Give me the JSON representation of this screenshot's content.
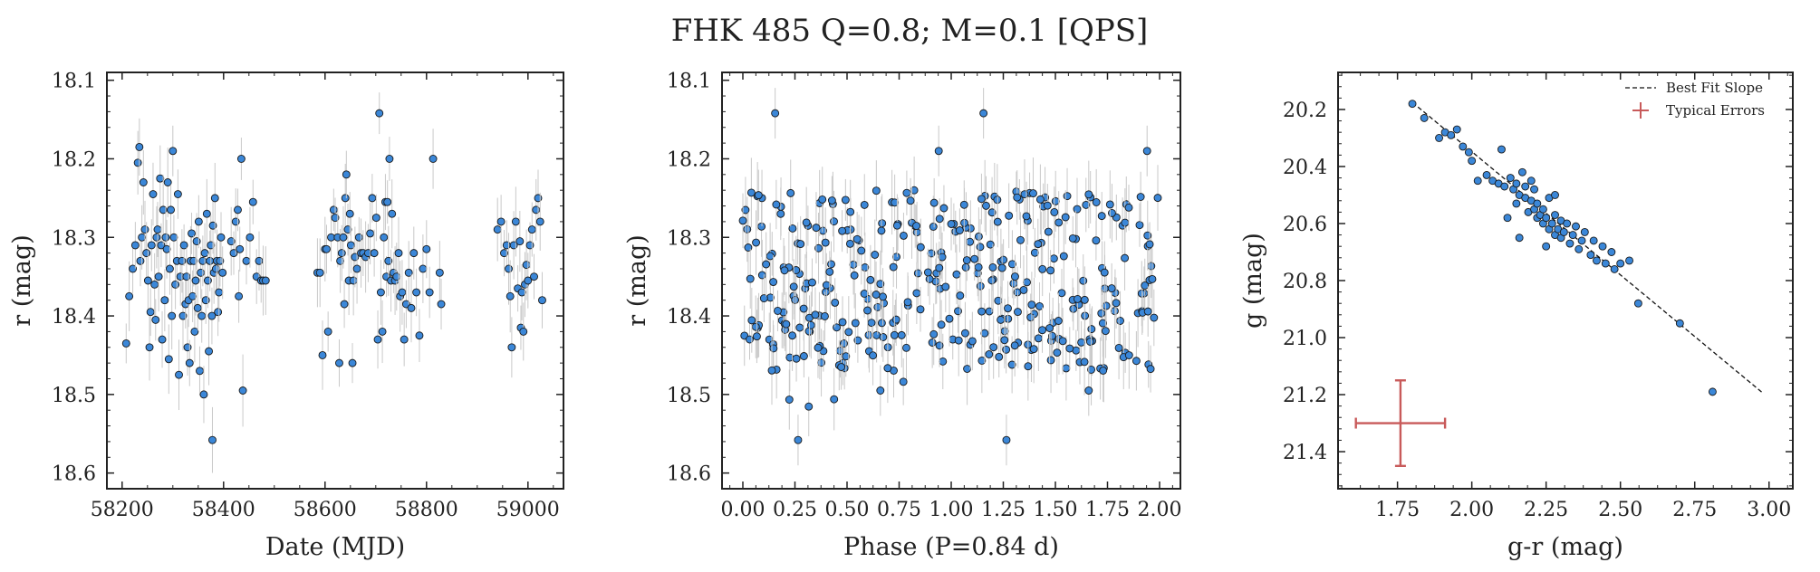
{
  "figure": {
    "title": "FHK 485  Q=0.8; M=0.1 [QPS]"
  },
  "chart_data": [
    {
      "type": "scatter",
      "xlabel": "Date (MJD)",
      "ylabel": "r (mag)",
      "xlim": [
        58170,
        59070
      ],
      "ylim": [
        18.09,
        18.62
      ],
      "y_inverted": true,
      "xticks": [
        58200,
        58400,
        58600,
        58800,
        59000
      ],
      "yticks": [
        18.1,
        18.2,
        18.3,
        18.4,
        18.5,
        18.6
      ],
      "error_bar_color": "#c8c8c8",
      "marker_color": "#3b87d8",
      "points": [
        [
          58208,
          18.435
        ],
        [
          58214,
          18.375
        ],
        [
          58221,
          18.34
        ],
        [
          58226,
          18.31
        ],
        [
          58231,
          18.205
        ],
        [
          58234,
          18.185
        ],
        [
          58236,
          18.33
        ],
        [
          58239,
          18.3
        ],
        [
          58242,
          18.23
        ],
        [
          58245,
          18.29
        ],
        [
          58248,
          18.32
        ],
        [
          58251,
          18.355
        ],
        [
          58254,
          18.44
        ],
        [
          58256,
          18.395
        ],
        [
          58258,
          18.31
        ],
        [
          58261,
          18.245
        ],
        [
          58264,
          18.36
        ],
        [
          58266,
          18.405
        ],
        [
          58268,
          18.3
        ],
        [
          58270,
          18.29
        ],
        [
          58272,
          18.35
        ],
        [
          58275,
          18.225
        ],
        [
          58277,
          18.31
        ],
        [
          58279,
          18.43
        ],
        [
          58281,
          18.265
        ],
        [
          58284,
          18.38
        ],
        [
          58286,
          18.3
        ],
        [
          58288,
          18.315
        ],
        [
          58290,
          18.23
        ],
        [
          58292,
          18.455
        ],
        [
          58294,
          18.34
        ],
        [
          58296,
          18.265
        ],
        [
          58298,
          18.4
        ],
        [
          58300,
          18.19
        ],
        [
          58302,
          18.3
        ],
        [
          58305,
          18.36
        ],
        [
          58308,
          18.33
        ],
        [
          58310,
          18.245
        ],
        [
          58312,
          18.475
        ],
        [
          58315,
          18.35
        ],
        [
          58318,
          18.33
        ],
        [
          58320,
          18.4
        ],
        [
          58322,
          18.31
        ],
        [
          58325,
          18.385
        ],
        [
          58327,
          18.35
        ],
        [
          58329,
          18.44
        ],
        [
          58331,
          18.38
        ],
        [
          58333,
          18.46
        ],
        [
          58335,
          18.33
        ],
        [
          58337,
          18.295
        ],
        [
          58339,
          18.375
        ],
        [
          58341,
          18.33
        ],
        [
          58343,
          18.42
        ],
        [
          58345,
          18.355
        ],
        [
          58347,
          18.305
        ],
        [
          58349,
          18.39
        ],
        [
          58351,
          18.28
        ],
        [
          58353,
          18.47
        ],
        [
          58355,
          18.345
        ],
        [
          58357,
          18.4
        ],
        [
          58359,
          18.33
        ],
        [
          58361,
          18.5
        ],
        [
          58363,
          18.32
        ],
        [
          58365,
          18.38
        ],
        [
          58367,
          18.27
        ],
        [
          58369,
          18.355
        ],
        [
          58371,
          18.445
        ],
        [
          58373,
          18.33
        ],
        [
          58375,
          18.31
        ],
        [
          58377,
          18.4
        ],
        [
          58379,
          18.285
        ],
        [
          58381,
          18.345
        ],
        [
          58383,
          18.25
        ],
        [
          58385,
          18.34
        ],
        [
          58387,
          18.33
        ],
        [
          58389,
          18.395
        ],
        [
          58391,
          18.37
        ],
        [
          58393,
          18.33
        ],
        [
          58395,
          18.3
        ],
        [
          58398,
          18.345
        ],
        [
          58378,
          18.558
        ],
        [
          58415,
          18.305
        ],
        [
          58420,
          18.32
        ],
        [
          58424,
          18.28
        ],
        [
          58428,
          18.265
        ],
        [
          58430,
          18.375
        ],
        [
          58432,
          18.315
        ],
        [
          58435,
          18.2
        ],
        [
          58438,
          18.495
        ],
        [
          58445,
          18.33
        ],
        [
          58452,
          18.3
        ],
        [
          58458,
          18.255
        ],
        [
          58465,
          18.35
        ],
        [
          58470,
          18.33
        ],
        [
          58474,
          18.355
        ],
        [
          58478,
          18.355
        ],
        [
          58483,
          18.355
        ],
        [
          58585,
          18.345
        ],
        [
          58590,
          18.345
        ],
        [
          58595,
          18.45
        ],
        [
          58600,
          18.315
        ],
        [
          58603,
          18.315
        ],
        [
          58606,
          18.42
        ],
        [
          58612,
          18.3
        ],
        [
          58617,
          18.265
        ],
        [
          58620,
          18.275
        ],
        [
          58625,
          18.3
        ],
        [
          58628,
          18.46
        ],
        [
          58630,
          18.33
        ],
        [
          58633,
          18.32
        ],
        [
          58636,
          18.3
        ],
        [
          58638,
          18.385
        ],
        [
          58640,
          18.25
        ],
        [
          58642,
          18.22
        ],
        [
          58645,
          18.29
        ],
        [
          58647,
          18.355
        ],
        [
          58649,
          18.27
        ],
        [
          58651,
          18.31
        ],
        [
          58654,
          18.46
        ],
        [
          58656,
          18.355
        ],
        [
          58659,
          18.325
        ],
        [
          58663,
          18.34
        ],
        [
          58667,
          18.3
        ],
        [
          58671,
          18.32
        ],
        [
          58675,
          18.32
        ],
        [
          58680,
          18.325
        ],
        [
          58685,
          18.32
        ],
        [
          58689,
          18.295
        ],
        [
          58693,
          18.25
        ],
        [
          58697,
          18.32
        ],
        [
          58701,
          18.275
        ],
        [
          58704,
          18.43
        ],
        [
          58707,
          18.142
        ],
        [
          58710,
          18.37
        ],
        [
          58713,
          18.42
        ],
        [
          58716,
          18.3
        ],
        [
          58719,
          18.255
        ],
        [
          58721,
          18.35
        ],
        [
          58723,
          18.255
        ],
        [
          58725,
          18.33
        ],
        [
          58727,
          18.2
        ],
        [
          58730,
          18.355
        ],
        [
          58732,
          18.27
        ],
        [
          58735,
          18.345
        ],
        [
          58738,
          18.355
        ],
        [
          58741,
          18.35
        ],
        [
          58745,
          18.32
        ],
        [
          58748,
          18.375
        ],
        [
          58752,
          18.37
        ],
        [
          58756,
          18.43
        ],
        [
          58760,
          18.385
        ],
        [
          58765,
          18.345
        ],
        [
          58770,
          18.39
        ],
        [
          58775,
          18.32
        ],
        [
          58780,
          18.37
        ],
        [
          58786,
          18.425
        ],
        [
          58793,
          18.34
        ],
        [
          58800,
          18.315
        ],
        [
          58806,
          18.37
        ],
        [
          58813,
          18.2
        ],
        [
          58826,
          18.345
        ],
        [
          58829,
          18.385
        ],
        [
          58940,
          18.29
        ],
        [
          58947,
          18.28
        ],
        [
          58953,
          18.32
        ],
        [
          58958,
          18.31
        ],
        [
          58962,
          18.34
        ],
        [
          58965,
          18.375
        ],
        [
          58968,
          18.44
        ],
        [
          58972,
          18.31
        ],
        [
          58976,
          18.28
        ],
        [
          58980,
          18.365
        ],
        [
          58984,
          18.305
        ],
        [
          58986,
          18.415
        ],
        [
          58988,
          18.37
        ],
        [
          58991,
          18.42
        ],
        [
          58994,
          18.36
        ],
        [
          58997,
          18.335
        ],
        [
          59000,
          18.355
        ],
        [
          59004,
          18.31
        ],
        [
          59008,
          18.29
        ],
        [
          59012,
          18.35
        ],
        [
          59016,
          18.265
        ],
        [
          59020,
          18.25
        ],
        [
          59024,
          18.28
        ],
        [
          59028,
          18.38
        ]
      ]
    },
    {
      "type": "scatter",
      "xlabel": "Phase (P=0.84 d)",
      "ylabel": "r (mag)",
      "xlim": [
        -0.1,
        2.1
      ],
      "ylim": [
        18.09,
        18.62
      ],
      "y_inverted": true,
      "xticks": [
        0.0,
        0.25,
        0.5,
        0.75,
        1.0,
        1.25,
        1.5,
        1.75,
        2.0
      ],
      "xtick_labels": [
        "0.00",
        "0.25",
        "0.50",
        "0.75",
        "1.00",
        "1.25",
        "1.50",
        "1.75",
        "2.00"
      ],
      "yticks": [
        18.1,
        18.2,
        18.3,
        18.4,
        18.5,
        18.6
      ],
      "error_bar_color": "#c8c8c8",
      "marker_color": "#3b87d8",
      "outliers": [
        [
          0.155,
          18.142
        ],
        [
          1.155,
          18.142
        ],
        [
          0.265,
          18.558
        ],
        [
          1.265,
          18.558
        ],
        [
          0.94,
          18.19
        ],
        [
          1.94,
          18.19
        ],
        [
          0.66,
          18.495
        ],
        [
          1.66,
          18.495
        ]
      ]
    },
    {
      "type": "scatter",
      "xlabel": "g-r (mag)",
      "ylabel": "g (mag)",
      "xlim": [
        1.55,
        3.08
      ],
      "ylim": [
        20.07,
        21.53
      ],
      "y_inverted": true,
      "xticks": [
        1.75,
        2.0,
        2.25,
        2.5,
        2.75,
        3.0
      ],
      "xtick_labels": [
        "1.75",
        "2.00",
        "2.25",
        "2.50",
        "2.75",
        "3.00"
      ],
      "yticks": [
        20.2,
        20.4,
        20.6,
        20.8,
        21.0,
        21.2,
        21.4
      ],
      "yticks_labels": [
        "20.2",
        "20.4",
        "20.6",
        "20.8",
        "21.0",
        "21.2",
        "21.4"
      ],
      "marker_color": "#3b87d8",
      "best_fit": {
        "x": [
          1.8,
          2.98
        ],
        "y": [
          20.175,
          21.195
        ]
      },
      "typical_error": {
        "x": 1.76,
        "y": 21.3,
        "dx": 0.15,
        "dy": 0.15,
        "color": "#c85a5a"
      },
      "legend": [
        "Best Fit Slope",
        "Typical Errors"
      ],
      "legend_position": "top-right",
      "points": [
        [
          1.8,
          20.18
        ],
        [
          1.84,
          20.23
        ],
        [
          1.89,
          20.3
        ],
        [
          1.91,
          20.28
        ],
        [
          1.93,
          20.29
        ],
        [
          1.95,
          20.27
        ],
        [
          1.97,
          20.33
        ],
        [
          1.99,
          20.35
        ],
        [
          2.0,
          20.38
        ],
        [
          2.02,
          20.45
        ],
        [
          2.05,
          20.43
        ],
        [
          2.07,
          20.45
        ],
        [
          2.09,
          20.46
        ],
        [
          2.1,
          20.34
        ],
        [
          2.11,
          20.47
        ],
        [
          2.13,
          20.44
        ],
        [
          2.14,
          20.48
        ],
        [
          2.15,
          20.46
        ],
        [
          2.15,
          20.53
        ],
        [
          2.16,
          20.5
        ],
        [
          2.17,
          20.42
        ],
        [
          2.18,
          20.51
        ],
        [
          2.18,
          20.47
        ],
        [
          2.19,
          20.56
        ],
        [
          2.2,
          20.45
        ],
        [
          2.2,
          20.52
        ],
        [
          2.21,
          20.55
        ],
        [
          2.21,
          20.48
        ],
        [
          2.22,
          20.58
        ],
        [
          2.22,
          20.53
        ],
        [
          2.23,
          20.57
        ],
        [
          2.24,
          20.6
        ],
        [
          2.24,
          20.55
        ],
        [
          2.25,
          20.58
        ],
        [
          2.26,
          20.51
        ],
        [
          2.26,
          20.62
        ],
        [
          2.27,
          20.6
        ],
        [
          2.28,
          20.57
        ],
        [
          2.28,
          20.64
        ],
        [
          2.29,
          20.62
        ],
        [
          2.3,
          20.59
        ],
        [
          2.3,
          20.65
        ],
        [
          2.31,
          20.63
        ],
        [
          2.32,
          20.6
        ],
        [
          2.33,
          20.67
        ],
        [
          2.34,
          20.64
        ],
        [
          2.35,
          20.61
        ],
        [
          2.36,
          20.69
        ],
        [
          2.37,
          20.66
        ],
        [
          2.38,
          20.63
        ],
        [
          2.4,
          20.71
        ],
        [
          2.41,
          20.66
        ],
        [
          2.42,
          20.73
        ],
        [
          2.44,
          20.68
        ],
        [
          2.45,
          20.74
        ],
        [
          2.47,
          20.7
        ],
        [
          2.48,
          20.76
        ],
        [
          2.5,
          20.74
        ],
        [
          2.53,
          20.73
        ],
        [
          2.56,
          20.88
        ],
        [
          2.12,
          20.58
        ],
        [
          2.16,
          20.65
        ],
        [
          2.25,
          20.68
        ],
        [
          2.28,
          20.5
        ],
        [
          2.7,
          20.95
        ],
        [
          2.81,
          21.19
        ]
      ]
    }
  ]
}
